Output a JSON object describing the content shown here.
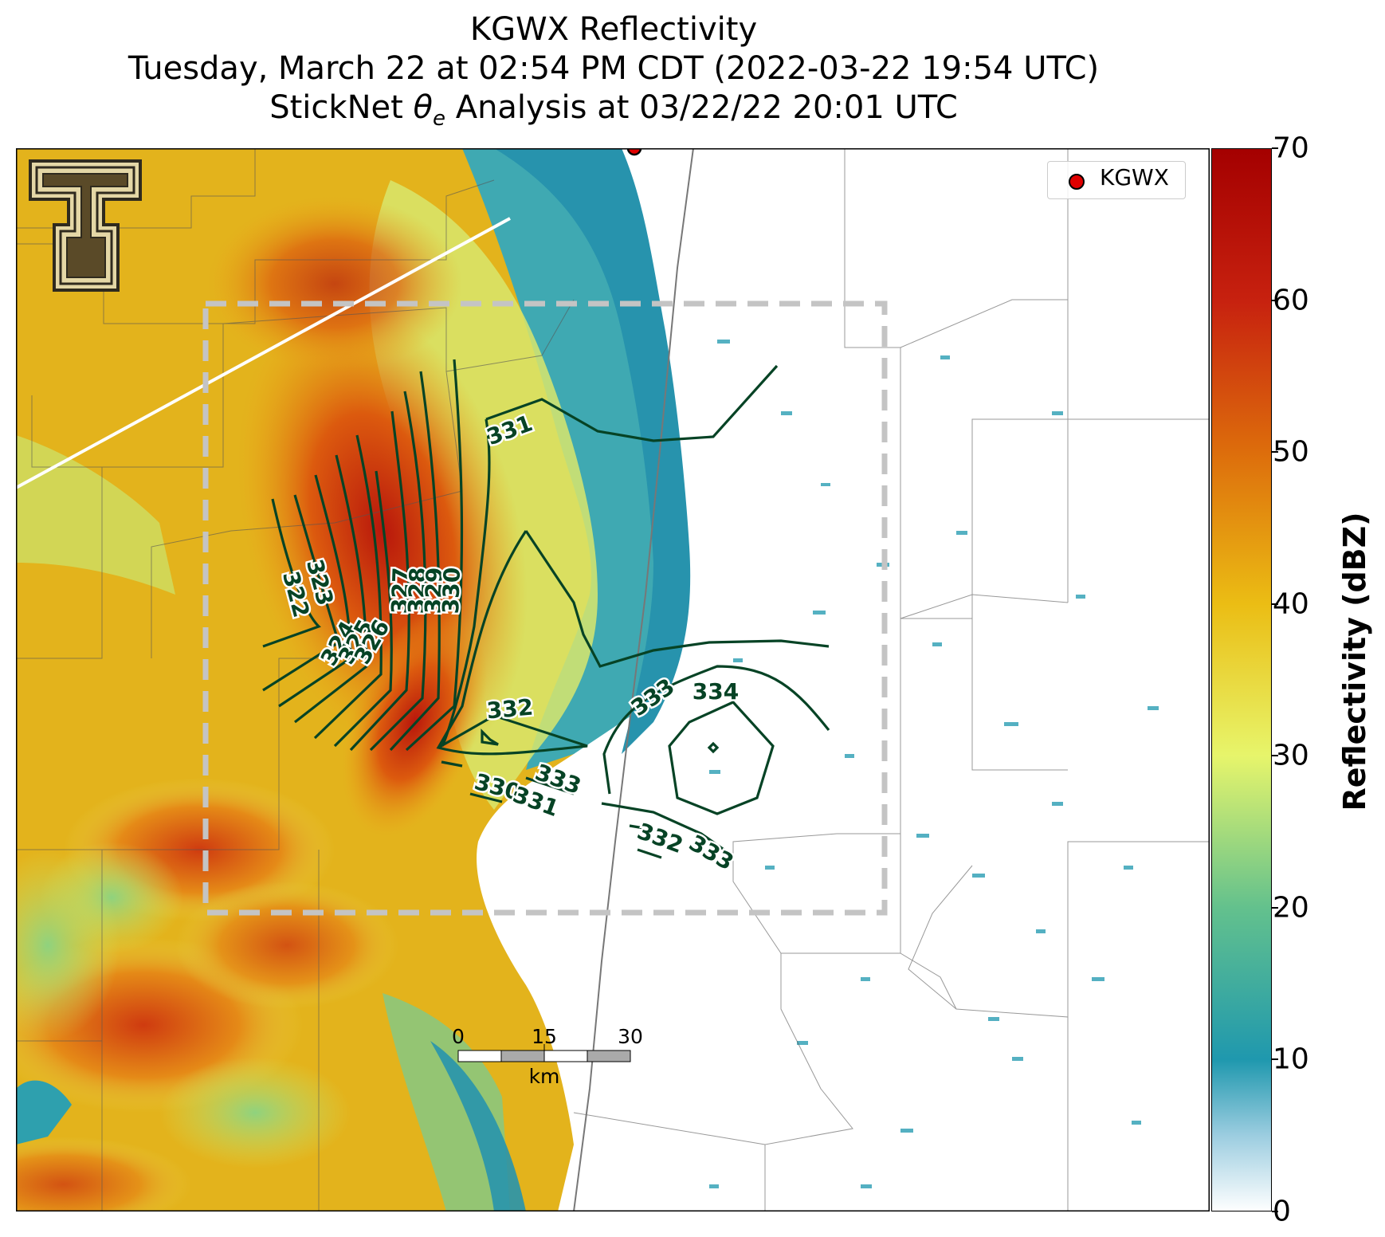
{
  "title": {
    "line1": "KGWX Reflectivity",
    "line2": "Tuesday, March 22 at 02:54 PM CDT (2022-03-22 19:54 UTC)",
    "line3_pre": "StickNet ",
    "line3_sym": "θ",
    "line3_sub": "e",
    "line3_post": " Analysis at 03/22/22 20:01 UTC"
  },
  "legend": {
    "label": "KGWX",
    "marker_color": "#e00000"
  },
  "scalebar": {
    "ticks": [
      "0",
      "15",
      "30"
    ],
    "unit": "km"
  },
  "colorbar": {
    "label": "Reflectivity (dBZ)",
    "ticks": [
      "0",
      "10",
      "20",
      "30",
      "40",
      "50",
      "60",
      "70"
    ],
    "min": 0,
    "max": 70,
    "stops": [
      {
        "v": 0,
        "c": "#ffffff"
      },
      {
        "v": 5,
        "c": "#9ccde0"
      },
      {
        "v": 10,
        "c": "#1f98ae"
      },
      {
        "v": 20,
        "c": "#63c18d"
      },
      {
        "v": 30,
        "c": "#e7f56b"
      },
      {
        "v": 40,
        "c": "#ebbd14"
      },
      {
        "v": 50,
        "c": "#dd6d0c"
      },
      {
        "v": 60,
        "c": "#c7210f"
      },
      {
        "v": 70,
        "c": "#a40000"
      }
    ]
  },
  "contour_color": "#064325",
  "contour_labels": [
    "322",
    "323",
    "324",
    "325",
    "326",
    "327",
    "328",
    "329",
    "330",
    "331",
    "332",
    "333",
    "333",
    "334",
    "332",
    "330",
    "331",
    "332",
    "333"
  ]
}
